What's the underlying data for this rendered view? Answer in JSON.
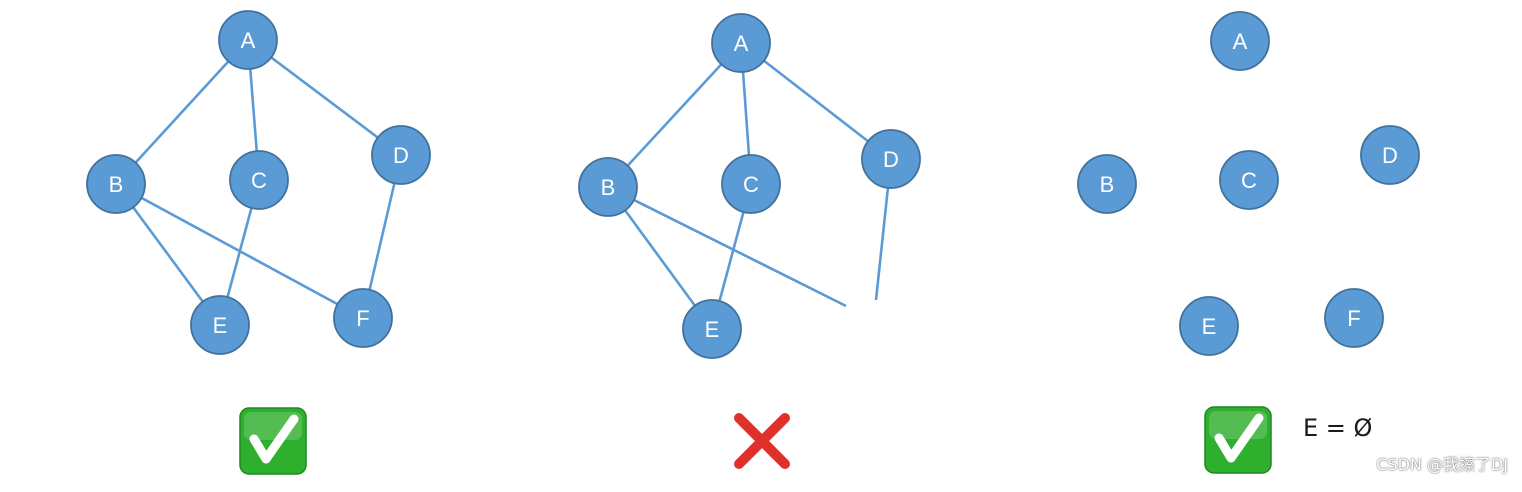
{
  "colors": {
    "node_fill": "#5b9bd5",
    "node_stroke": "#41719c",
    "edge": "#5b9bd5",
    "node_text": "#ffffff",
    "check_bg": "#2eaf2e",
    "cross": "#e0302a"
  },
  "panels": [
    {
      "id": "left",
      "verdict_icon": "check-mark-icon",
      "nodes": [
        {
          "id": "A",
          "label": "A"
        },
        {
          "id": "B",
          "label": "B"
        },
        {
          "id": "C",
          "label": "C"
        },
        {
          "id": "D",
          "label": "D"
        },
        {
          "id": "E",
          "label": "E"
        },
        {
          "id": "F",
          "label": "F"
        }
      ],
      "edges": [
        [
          "A",
          "B"
        ],
        [
          "A",
          "C"
        ],
        [
          "A",
          "D"
        ],
        [
          "B",
          "E"
        ],
        [
          "B",
          "F"
        ],
        [
          "C",
          "E"
        ],
        [
          "D",
          "F"
        ]
      ]
    },
    {
      "id": "middle",
      "verdict_icon": "cross-mark-icon",
      "nodes": [
        {
          "id": "A",
          "label": "A"
        },
        {
          "id": "B",
          "label": "B"
        },
        {
          "id": "C",
          "label": "C"
        },
        {
          "id": "D",
          "label": "D"
        },
        {
          "id": "E",
          "label": "E"
        }
      ],
      "edges": [
        [
          "A",
          "B"
        ],
        [
          "A",
          "C"
        ],
        [
          "A",
          "D"
        ],
        [
          "B",
          "E"
        ],
        [
          "C",
          "E"
        ]
      ],
      "dangling_edges": [
        "B",
        "D"
      ]
    },
    {
      "id": "right",
      "verdict_icon": "check-mark-icon",
      "edge_set_label": "E = Ø",
      "nodes": [
        {
          "id": "A",
          "label": "A"
        },
        {
          "id": "B",
          "label": "B"
        },
        {
          "id": "C",
          "label": "C"
        },
        {
          "id": "D",
          "label": "D"
        },
        {
          "id": "E",
          "label": "E"
        },
        {
          "id": "F",
          "label": "F"
        }
      ],
      "edges": []
    }
  ],
  "watermark": "CSDN @我擦了DJ"
}
